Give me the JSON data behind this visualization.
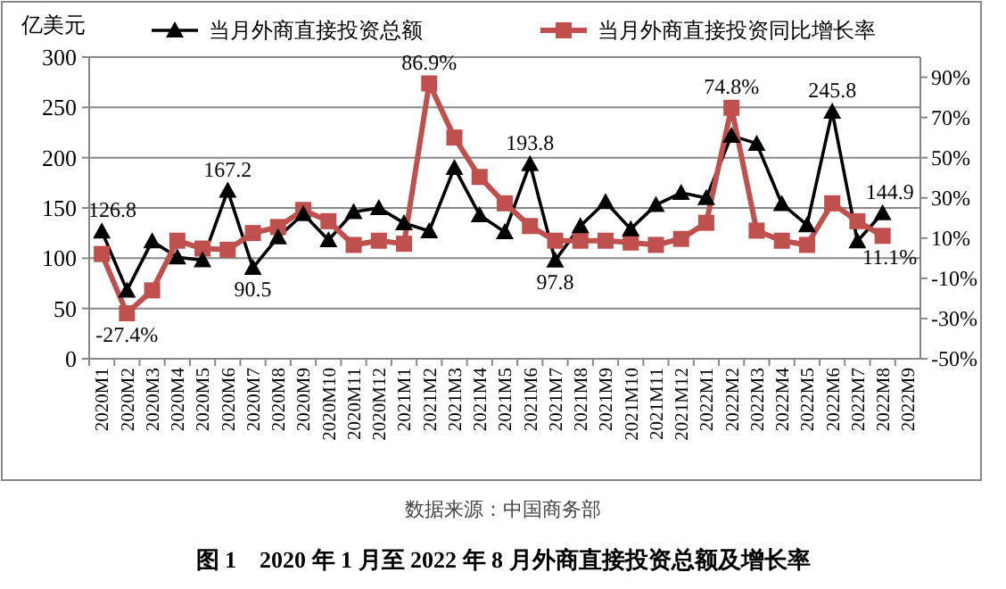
{
  "chart_data": {
    "type": "line",
    "title": "图 1　2020 年 1 月至 2022 年 8 月外商直接投资总额及增长率",
    "ylabel": "亿美元",
    "annotations": [
      "数据来源：中国商务部"
    ],
    "categories": [
      "2020M1",
      "2020M2",
      "2020M3",
      "2020M4",
      "2020M5",
      "2020M6",
      "2020M7",
      "2020M8",
      "2020M9",
      "2020M10",
      "2020M11",
      "2020M12",
      "2021M1",
      "2021M2",
      "2021M3",
      "2021M4",
      "2021M5",
      "2021M6",
      "2021M7",
      "2021M8",
      "2021M9",
      "2021M10",
      "2021M11",
      "2021M12",
      "2022M1",
      "2022M2",
      "2022M3",
      "2022M4",
      "2022M5",
      "2022M6",
      "2022M7",
      "2022M8",
      "2022M9"
    ],
    "series": [
      {
        "name": "当月外商直接投资总额",
        "color": "#000000",
        "marker": "triangle",
        "values": [
          126.8,
          68,
          117,
          101,
          98,
          167.2,
          90.5,
          121,
          144,
          118,
          146,
          150,
          135,
          127,
          190,
          143,
          126,
          193.8,
          97.8,
          132,
          156,
          129,
          153,
          165,
          160,
          222,
          214,
          154,
          133,
          245.8,
          117,
          144.9,
          null
        ],
        "value_labels": [
          "126.8",
          null,
          null,
          null,
          null,
          "167.2",
          "90.5",
          null,
          null,
          null,
          null,
          null,
          null,
          null,
          null,
          null,
          null,
          "193.8",
          "97.8",
          null,
          null,
          null,
          null,
          null,
          null,
          null,
          null,
          null,
          null,
          "245.8",
          null,
          "144.9",
          null
        ]
      },
      {
        "name": "当月外商直接投资同比增长率",
        "color": "#c0504d",
        "marker": "square",
        "axis": "y2",
        "values": [
          2.1,
          -27.4,
          -16,
          8.7,
          4.8,
          4.2,
          12.5,
          15.5,
          24,
          18.4,
          6.6,
          8.7,
          7.2,
          86.9,
          60,
          40.4,
          27.3,
          16,
          8.7,
          8.7,
          8.7,
          7.8,
          6.6,
          9.6,
          17.6,
          74.8,
          13.7,
          8.7,
          6.6,
          27.3,
          18.4,
          11.1,
          null
        ],
        "value_labels": [
          null,
          "-27.4%",
          null,
          null,
          null,
          null,
          null,
          null,
          null,
          null,
          null,
          null,
          null,
          "86.9%",
          null,
          null,
          null,
          null,
          null,
          null,
          null,
          null,
          null,
          null,
          null,
          "74.8%",
          null,
          null,
          null,
          null,
          null,
          "11.1%",
          null
        ]
      }
    ],
    "ylim": [
      0,
      300
    ],
    "yticks": [
      0,
      50,
      100,
      150,
      200,
      250,
      300
    ],
    "y2lim": [
      -50,
      100
    ],
    "y2ticks": [
      {
        "value": -50,
        "label": "-50%"
      },
      {
        "value": -30,
        "label": "-30%"
      },
      {
        "value": -10,
        "label": "-10%"
      },
      {
        "value": 10,
        "label": "10%"
      },
      {
        "value": 30,
        "label": "30%"
      },
      {
        "value": 50,
        "label": "50%"
      },
      {
        "value": 70,
        "label": "70%"
      },
      {
        "value": 90,
        "label": "90%"
      }
    ],
    "grid": "y",
    "legend": "top",
    "line_style": "solid"
  }
}
